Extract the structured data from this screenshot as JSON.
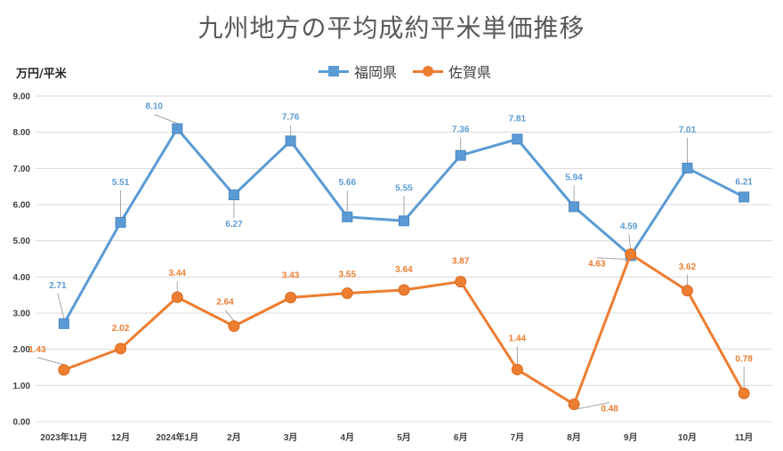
{
  "title": "九州地方の平均成約平米単価推移",
  "unit_label": "万円/平米",
  "colors": {
    "fukuoka": "#5B9BD5",
    "saga": "#ED7D31",
    "grid": "#D9D9D9",
    "leader": "#A6A6A6"
  },
  "chart_data": {
    "type": "line",
    "title": "九州地方の平均成約平米単価推移",
    "ylabel": "万円/平米",
    "xlabel": "",
    "ylim": [
      0,
      9
    ],
    "yticks": [
      "0.00",
      "1.00",
      "2.00",
      "3.00",
      "4.00",
      "5.00",
      "6.00",
      "7.00",
      "8.00",
      "9.00"
    ],
    "grid": true,
    "legend_position": "top",
    "categories": [
      "2023年11月",
      "12月",
      "2024年1月",
      "2月",
      "3月",
      "4月",
      "5月",
      "6月",
      "7月",
      "8月",
      "9月",
      "10月",
      "11月"
    ],
    "series": [
      {
        "name": "福岡県",
        "marker": "square",
        "values": [
          2.71,
          5.51,
          8.1,
          6.27,
          7.76,
          5.66,
          5.55,
          7.36,
          7.81,
          5.94,
          4.59,
          7.01,
          6.21
        ]
      },
      {
        "name": "佐賀県",
        "marker": "circle",
        "values": [
          1.43,
          2.02,
          3.44,
          2.64,
          3.43,
          3.55,
          3.64,
          3.87,
          1.44,
          0.48,
          4.63,
          3.62,
          0.78
        ]
      }
    ]
  }
}
